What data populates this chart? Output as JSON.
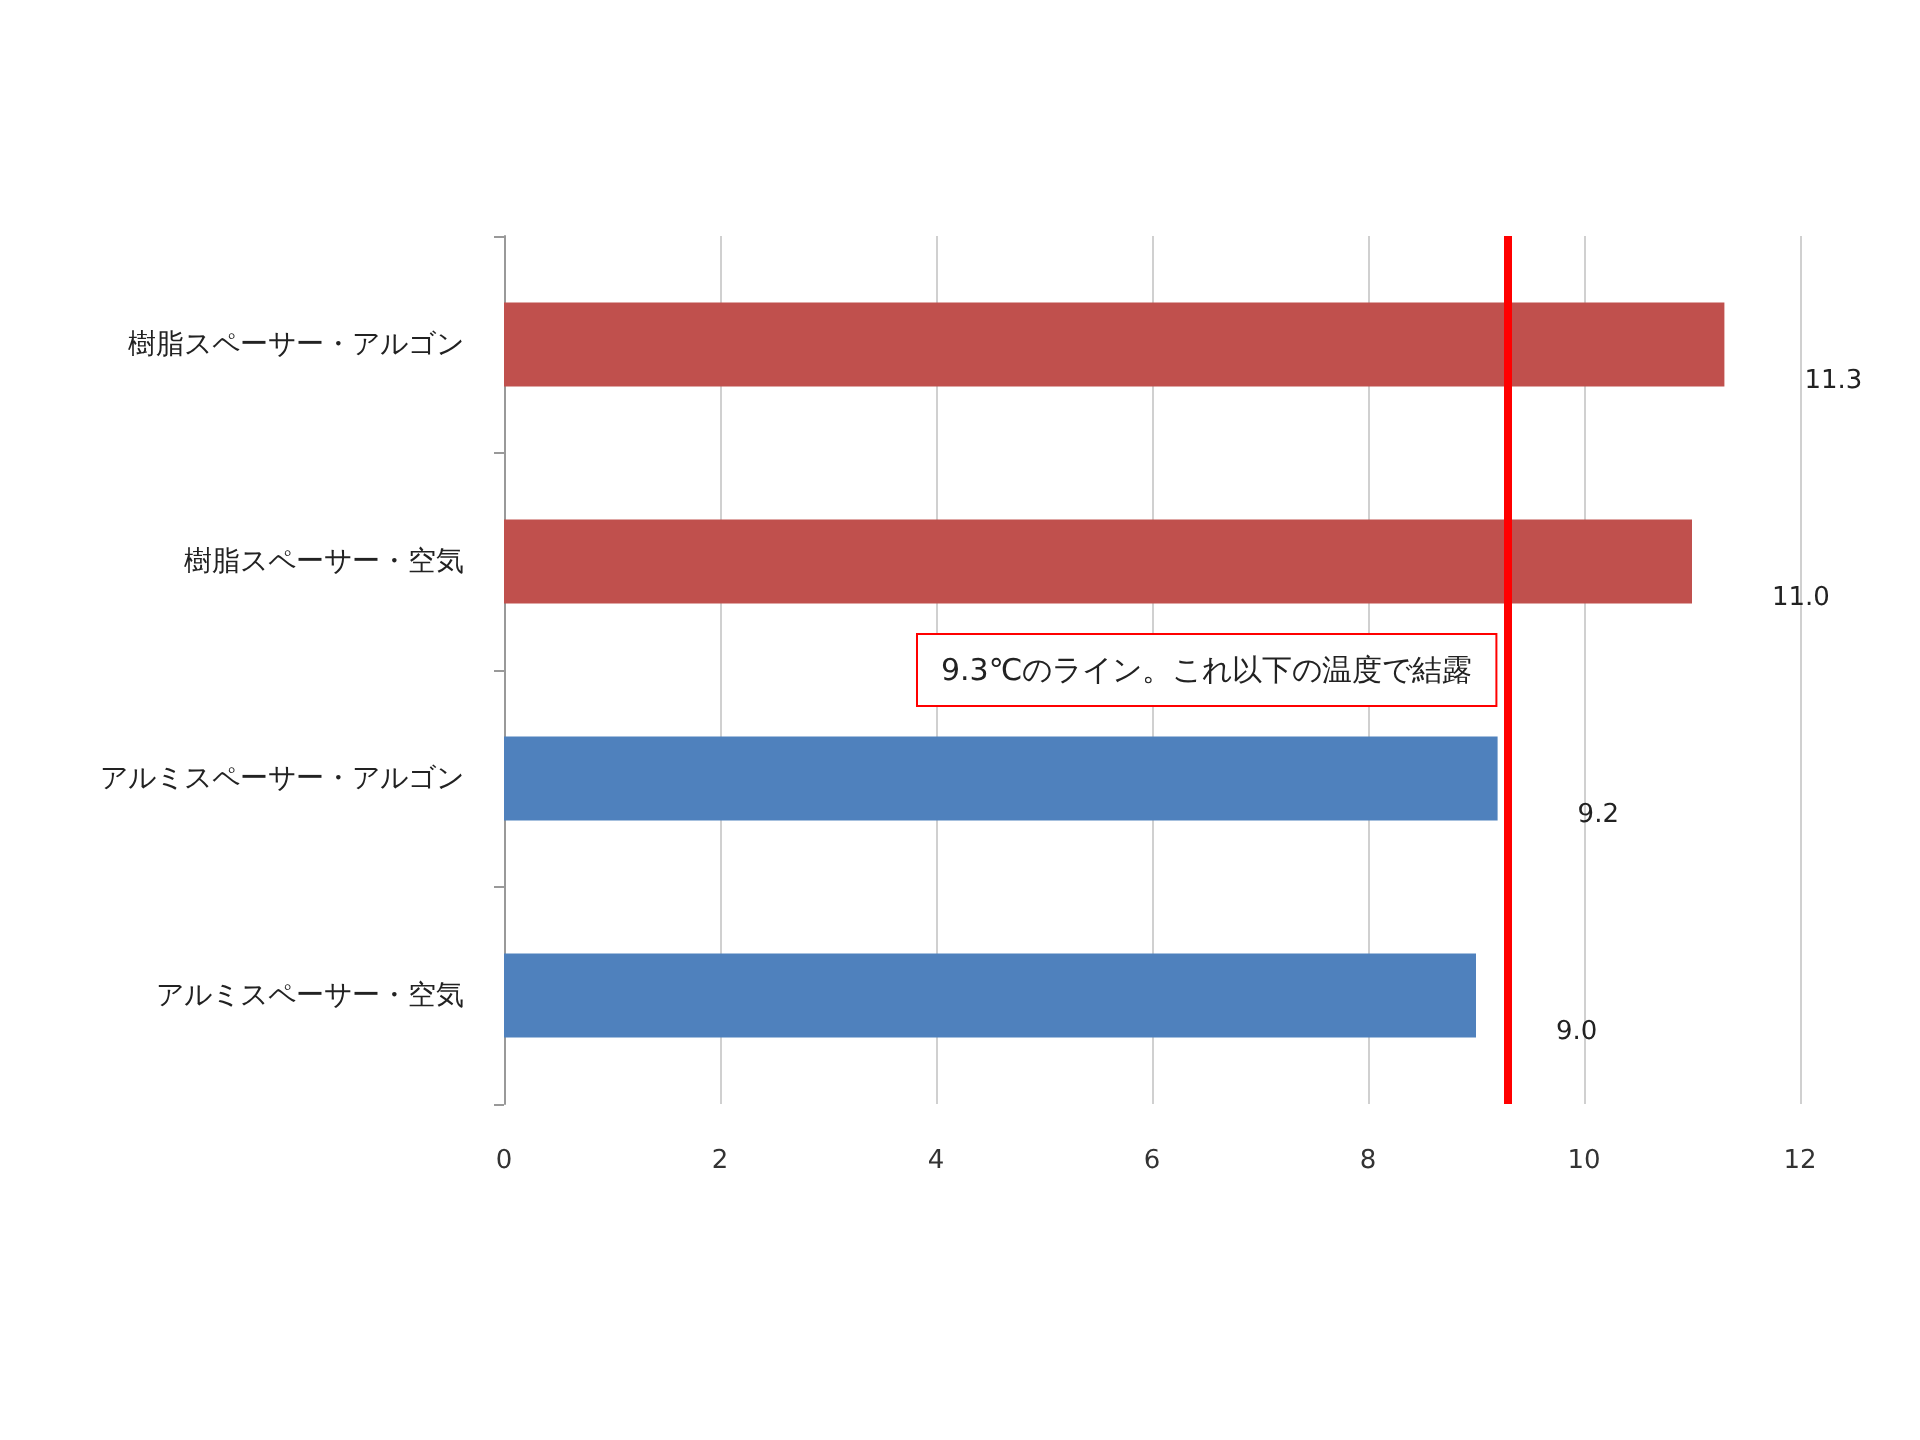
{
  "chart_data": {
    "type": "bar",
    "orientation": "horizontal",
    "categories": [
      "樹脂スペーサー・アルゴン",
      "樹脂スペーサー・空気",
      "アルミスペーサー・アルゴン",
      "アルミスペーサー・空気"
    ],
    "values": [
      11.3,
      11.0,
      9.2,
      9.0
    ],
    "colors": [
      "#c0504d",
      "#c0504d",
      "#4f81bd",
      "#4f81bd"
    ],
    "value_labels": [
      "11.3",
      "11.0",
      "9.2",
      "9.0"
    ],
    "xlim": [
      0,
      12
    ],
    "xticks": [
      0,
      2,
      4,
      6,
      8,
      10,
      12
    ],
    "grid": "x",
    "ref_lines": [
      {
        "axis": "x",
        "value": 9.3,
        "label": "9.3℃のライン。これ以下の温度で結露",
        "color": "#ff0000"
      }
    ]
  }
}
